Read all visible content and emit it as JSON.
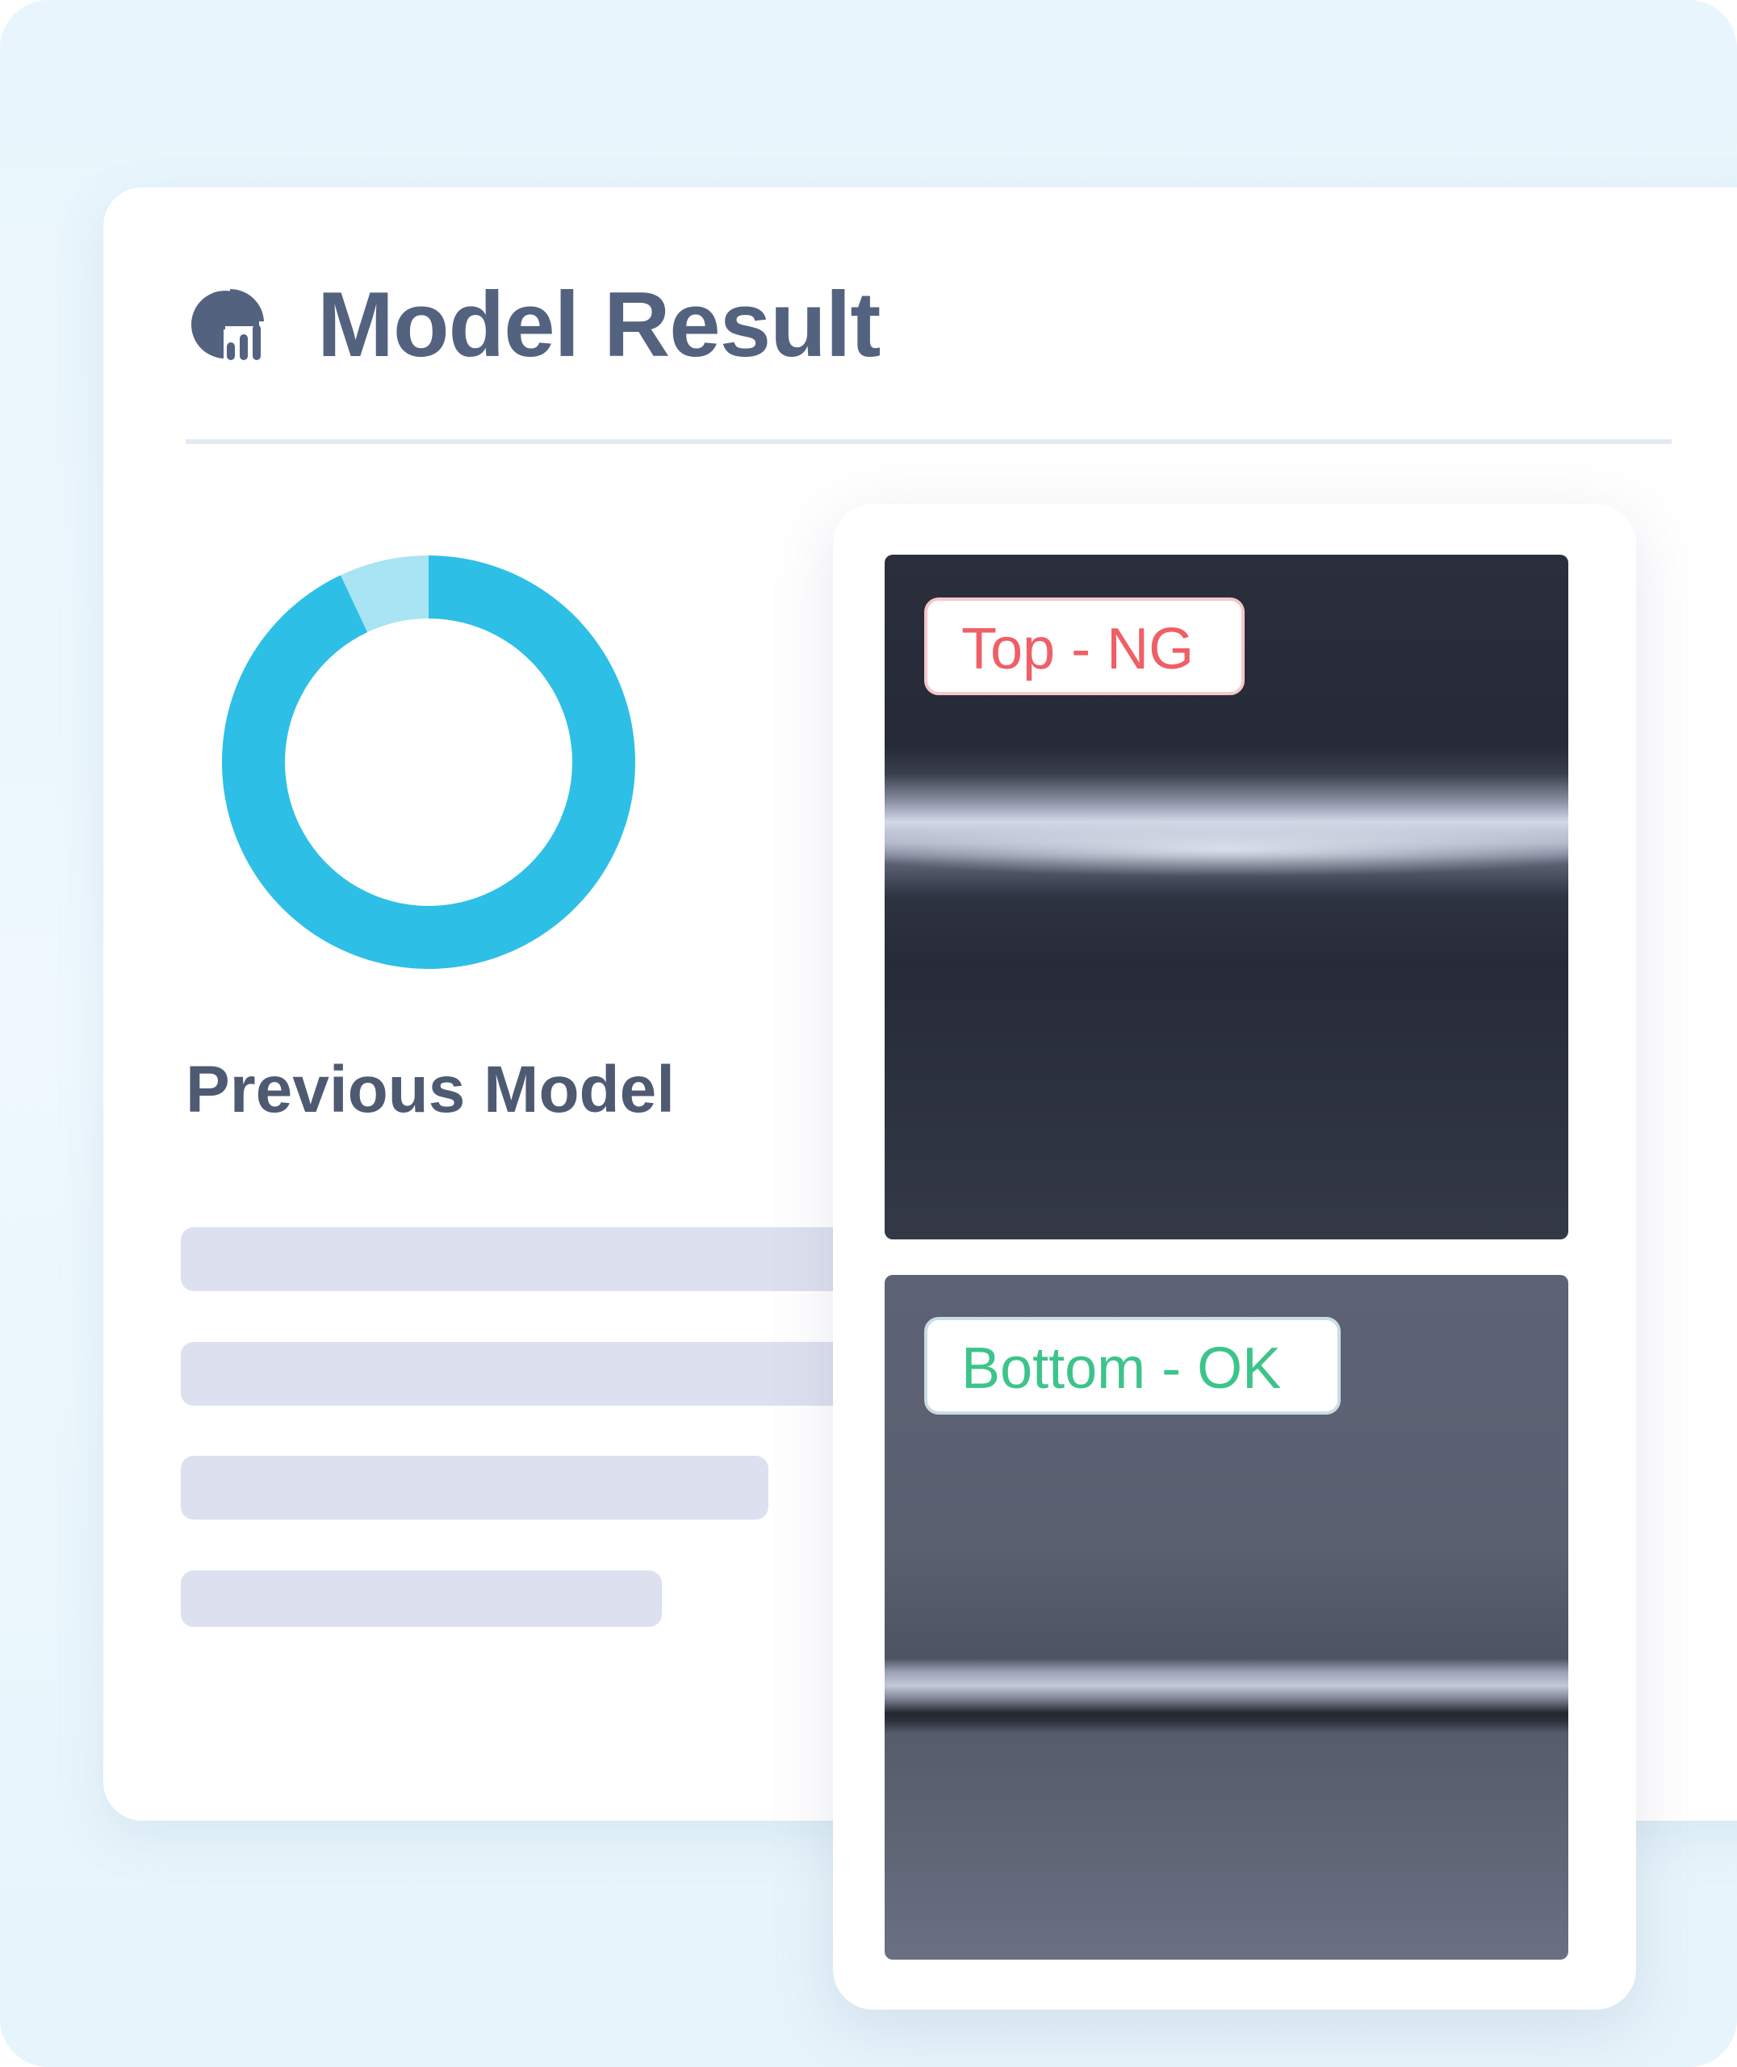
{
  "header": {
    "title": "Model Result",
    "icon": "pie-chart-report-icon"
  },
  "previous_model": {
    "label": "Previous Model",
    "donut": {
      "type": "pie",
      "values": [
        93,
        7
      ],
      "colors": [
        "#2ebfe6",
        "#a9e4f4"
      ]
    }
  },
  "colors": {
    "title": "#53627f",
    "accent": "#2ebfe6",
    "ng": "#ef5f66",
    "ok": "#3cc48a",
    "skeleton": "#dde0ee"
  },
  "results": [
    {
      "label": "Top - NG",
      "status": "NG"
    },
    {
      "label": "Bottom - OK",
      "status": "OK"
    }
  ]
}
